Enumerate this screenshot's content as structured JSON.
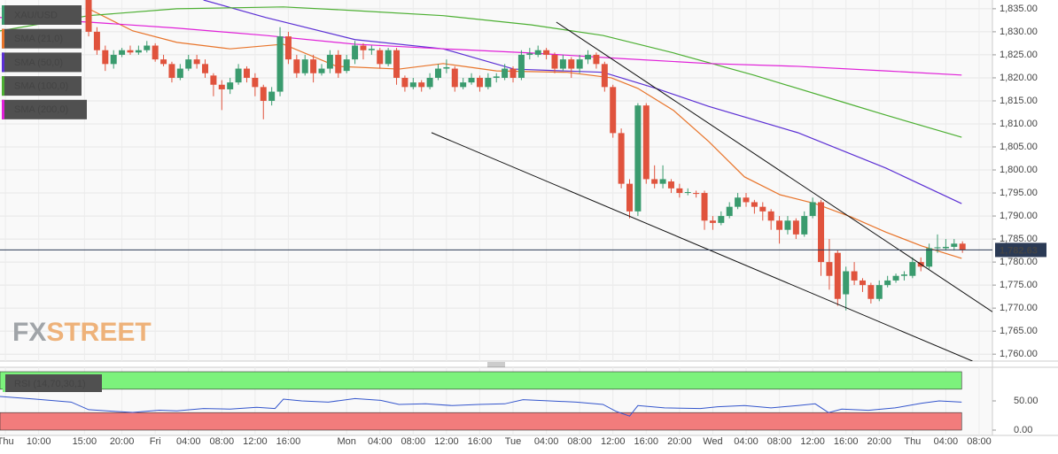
{
  "chart_data": {
    "type": "candlestick",
    "symbol": "XAU/USD",
    "symbol_color": "#3a9b6e",
    "up_color": "#3a9b6e",
    "down_color": "#e0533d",
    "grid": true,
    "xlim": [
      0.35,
      119.6
    ],
    "ylim": [
      1758.5,
      1836.9
    ],
    "yticks": [
      {
        "value": 1835,
        "label": "1,835.00"
      },
      {
        "value": 1830,
        "label": "1,830.00"
      },
      {
        "value": 1825,
        "label": "1,825.00"
      },
      {
        "value": 1820,
        "label": "1,820.00"
      },
      {
        "value": 1815,
        "label": "1,815.00"
      },
      {
        "value": 1810,
        "label": "1,810.00"
      },
      {
        "value": 1805,
        "label": "1,805.00"
      },
      {
        "value": 1800,
        "label": "1,800.00"
      },
      {
        "value": 1795,
        "label": "1,795.00"
      },
      {
        "value": 1790,
        "label": "1,790.00"
      },
      {
        "value": 1785,
        "label": "1,785.00"
      },
      {
        "value": 1780,
        "label": "1,780.00"
      },
      {
        "value": 1775,
        "label": "1,775.00"
      },
      {
        "value": 1770,
        "label": "1,770.00"
      },
      {
        "value": 1765,
        "label": "1,765.00"
      },
      {
        "value": 1760,
        "label": "1,760.00"
      }
    ],
    "xticks": [
      {
        "value": 1,
        "label": "Thu"
      },
      {
        "value": 5,
        "label": "10:00"
      },
      {
        "value": 10.5,
        "label": "15:00"
      },
      {
        "value": 15,
        "label": "20:00"
      },
      {
        "value": 19,
        "label": "Fri"
      },
      {
        "value": 23,
        "label": "04:00"
      },
      {
        "value": 27,
        "label": "08:00"
      },
      {
        "value": 31,
        "label": "12:00"
      },
      {
        "value": 35,
        "label": "16:00"
      },
      {
        "value": 42,
        "label": "Mon"
      },
      {
        "value": 46,
        "label": "04:00"
      },
      {
        "value": 50,
        "label": "08:00"
      },
      {
        "value": 54,
        "label": "12:00"
      },
      {
        "value": 58,
        "label": "16:00"
      },
      {
        "value": 62,
        "label": "Tue"
      },
      {
        "value": 66,
        "label": "04:00"
      },
      {
        "value": 70,
        "label": "08:00"
      },
      {
        "value": 74,
        "label": "12:00"
      },
      {
        "value": 78,
        "label": "16:00"
      },
      {
        "value": 82,
        "label": "20:00"
      },
      {
        "value": 86,
        "label": "Wed"
      },
      {
        "value": 90,
        "label": "04:00"
      },
      {
        "value": 94,
        "label": "08:00"
      },
      {
        "value": 98,
        "label": "12:00"
      },
      {
        "value": 102,
        "label": "16:00"
      },
      {
        "value": 106,
        "label": "20:00"
      },
      {
        "value": 110,
        "label": "Thu"
      },
      {
        "value": 114,
        "label": "04:00"
      },
      {
        "value": 118,
        "label": "08:00"
      }
    ],
    "x": [
      11,
      12,
      13,
      14,
      15,
      16,
      17,
      18,
      19,
      20,
      21,
      22,
      23,
      24,
      25,
      26,
      27,
      28,
      29,
      30,
      31,
      32,
      33,
      34,
      35,
      36,
      37,
      38,
      39,
      40,
      41,
      42,
      43,
      44,
      45,
      46,
      47,
      48,
      49,
      50,
      51,
      52,
      53,
      54,
      55,
      56,
      57,
      58,
      59,
      60,
      61,
      62,
      63,
      64,
      65,
      66,
      67,
      68,
      69,
      70,
      71,
      72,
      73,
      74,
      75,
      76,
      77,
      78,
      79,
      80,
      81,
      82,
      83,
      84,
      85,
      86,
      87,
      88,
      89,
      90,
      91,
      92,
      93,
      94,
      95,
      96,
      97,
      98,
      99,
      100,
      101,
      102,
      103,
      104,
      105,
      106,
      107,
      108,
      109,
      110,
      111,
      112,
      113,
      114,
      115,
      116
    ],
    "open": [
      1837,
      1830,
      1826,
      1823,
      1825,
      1826,
      1825.5,
      1826,
      1827,
      1824,
      1823,
      1820,
      1822,
      1824,
      1823,
      1820.5,
      1818.5,
      1817.5,
      1819,
      1822,
      1820,
      1818,
      1815,
      1817,
      1829,
      1824,
      1821,
      1824,
      1821,
      1822,
      1825,
      1821.5,
      1824,
      1827,
      1826,
      1826,
      1823,
      1826,
      1820,
      1818,
      1819,
      1818,
      1820,
      1822,
      1822,
      1818,
      1819,
      1820,
      1818,
      1820,
      1820,
      1822,
      1820,
      1825,
      1825,
      1826,
      1825,
      1822,
      1824,
      1822,
      1824,
      1825,
      1823,
      1818,
      1808,
      1797,
      1791,
      1814,
      1798,
      1797,
      1797.5,
      1796,
      1795,
      1795,
      1795,
      1789,
      1788.5,
      1790,
      1792,
      1794,
      1793,
      1792,
      1791,
      1789,
      1787,
      1789,
      1786,
      1790,
      1793,
      1780,
      1782,
      1773,
      1778,
      1776,
      1775,
      1772,
      1775,
      1776,
      1777,
      1777,
      1780,
      1779,
      1783,
      1783,
      1783.3,
      1784
    ],
    "high": [
      1838,
      1831,
      1827,
      1826,
      1826.5,
      1827,
      1827,
      1828,
      1827.5,
      1825,
      1823.5,
      1823,
      1825,
      1825,
      1824,
      1821,
      1819.5,
      1820,
      1823,
      1822.5,
      1821,
      1818.5,
      1818,
      1831,
      1830,
      1825,
      1825,
      1825,
      1823,
      1826,
      1826,
      1825,
      1828,
      1827.5,
      1827,
      1826.5,
      1826.5,
      1826.5,
      1820.5,
      1820,
      1819.5,
      1821,
      1823,
      1824,
      1822.5,
      1820,
      1821,
      1820.5,
      1821,
      1821,
      1823,
      1822.5,
      1826,
      1826.5,
      1827,
      1826.5,
      1825.5,
      1825,
      1824.5,
      1825,
      1826,
      1825.5,
      1823.5,
      1818.5,
      1809,
      1798,
      1814.5,
      1814.5,
      1801,
      1801,
      1798,
      1797,
      1796,
      1795.5,
      1795.5,
      1790,
      1791,
      1793,
      1795,
      1795,
      1793.5,
      1793,
      1791.5,
      1790,
      1790,
      1789.5,
      1791,
      1794,
      1793.5,
      1785,
      1782.5,
      1779,
      1780,
      1776.5,
      1775.5,
      1776,
      1777,
      1777.5,
      1778,
      1781,
      1781,
      1784,
      1786,
      1785,
      1785,
      1784.5
    ],
    "low": [
      1829,
      1825,
      1821.5,
      1822,
      1824.5,
      1825,
      1825,
      1825.5,
      1823.5,
      1822.5,
      1819,
      1819.5,
      1821.5,
      1822,
      1820,
      1816,
      1813,
      1816.5,
      1818.5,
      1819,
      1816,
      1811,
      1814,
      1816,
      1823,
      1820,
      1820.5,
      1819,
      1820.5,
      1821,
      1820,
      1821,
      1823,
      1824,
      1825,
      1822,
      1822.5,
      1818.5,
      1817,
      1817.5,
      1817,
      1817.5,
      1819.5,
      1821,
      1817,
      1817.5,
      1818.5,
      1817,
      1817.5,
      1819,
      1819.5,
      1819,
      1819.5,
      1824,
      1824.5,
      1824,
      1821,
      1821.5,
      1820,
      1821,
      1823,
      1822,
      1817,
      1807,
      1796,
      1789.5,
      1790,
      1797,
      1796,
      1796,
      1795,
      1794,
      1794.5,
      1794,
      1787,
      1787,
      1788,
      1789.5,
      1791.5,
      1792,
      1790.5,
      1789,
      1787,
      1784,
      1786,
      1785,
      1785.5,
      1789.5,
      1777,
      1774,
      1770.5,
      1769.5,
      1775,
      1773.5,
      1771,
      1771.5,
      1774.5,
      1775.5,
      1776,
      1776.5,
      1778,
      1778.5,
      1782,
      1782.5,
      1782.5,
      1782
    ],
    "close": [
      1830,
      1826,
      1823,
      1825,
      1826,
      1825.5,
      1826,
      1827,
      1824,
      1823,
      1820,
      1822,
      1824,
      1823,
      1821,
      1818.5,
      1817.5,
      1819,
      1822,
      1820,
      1818,
      1815,
      1817,
      1829,
      1824,
      1821,
      1824,
      1821,
      1822,
      1825,
      1821,
      1824,
      1827,
      1826,
      1826.3,
      1823,
      1826,
      1820,
      1818,
      1819,
      1818,
      1820,
      1822,
      1822.3,
      1818,
      1819,
      1820,
      1818,
      1820,
      1820.3,
      1822,
      1820,
      1825,
      1825.3,
      1826,
      1825,
      1822,
      1824,
      1822,
      1824,
      1825,
      1823,
      1818,
      1808,
      1797,
      1791,
      1814,
      1798,
      1797,
      1798,
      1796,
      1795,
      1795.2,
      1794.8,
      1789,
      1788.5,
      1790,
      1792,
      1794,
      1793,
      1792,
      1791,
      1789,
      1787,
      1789,
      1786,
      1790,
      1793,
      1780,
      1777,
      1772,
      1778,
      1776,
      1775,
      1772,
      1775,
      1776,
      1777,
      1777.3,
      1780,
      1779,
      1783,
      1783.2,
      1783.3,
      1784,
      1782.63
    ],
    "overlays": [
      {
        "name": "SMA (21,0)",
        "color": "#e8742a",
        "x": [
          11,
          16.3,
          21.6,
          28,
          34.4,
          40.8,
          48.3,
          53.6,
          60,
          68.5,
          73.8,
          77,
          81.3,
          85.5,
          89.8,
          94.1,
          98.3,
          102.6,
          106.8,
          111.1,
          115.9
        ],
        "values": [
          1835,
          1830.2,
          1827.7,
          1826.3,
          1827.3,
          1822.5,
          1821.9,
          1823.1,
          1821.5,
          1821.2,
          1820,
          1817.7,
          1812.9,
          1806.2,
          1798.5,
          1794.6,
          1792.7,
          1789.8,
          1786.5,
          1783.5,
          1780.8
        ]
      },
      {
        "name": "SMA (50,0)",
        "color": "#5b2fd4",
        "x": [
          24.8,
          32.3,
          43,
          53.6,
          62.1,
          72.8,
          79.2,
          85.5,
          96.2,
          106.8,
          115.9
        ],
        "values": [
          1836.9,
          1833.1,
          1828.3,
          1826.3,
          1821.9,
          1821.2,
          1817.7,
          1813.8,
          1808.1,
          1800.4,
          1792.7
        ]
      },
      {
        "name": "SMA (100,0)",
        "color": "#4caf32",
        "x": [
          0.35,
          11,
          21.6,
          34.4,
          43,
          53.6,
          64.2,
          72.8,
          81.3,
          90.9,
          101.5,
          106.8,
          115.9
        ],
        "values": [
          1830.2,
          1833.5,
          1835,
          1835.4,
          1834.6,
          1833.5,
          1831.5,
          1829.2,
          1825.4,
          1820.6,
          1814.8,
          1811.9,
          1807.1
        ]
      },
      {
        "name": "SMA (200,0)",
        "color": "#e020d8",
        "x": [
          0.35,
          11,
          21.6,
          32.3,
          43,
          53.6,
          64.2,
          74.9,
          85.5,
          96.2,
          106.8,
          115.9
        ],
        "values": [
          1833.1,
          1832.1,
          1830.8,
          1829.2,
          1827.3,
          1826.3,
          1825.4,
          1824.2,
          1823.1,
          1822.5,
          1821.5,
          1820.6
        ]
      }
    ],
    "trendlines": [
      {
        "color": "#111111",
        "x": [
          67.2,
          119.6
        ],
        "values": [
          1832.1,
          1769.2
        ]
      },
      {
        "color": "#111111",
        "x": [
          52.2,
          117.2
        ],
        "values": [
          1808.1,
          1758.5
        ]
      }
    ],
    "last_price": 1782.63,
    "last_price_label": "1,782.63",
    "watermark": [
      "FX",
      "STREET"
    ],
    "rsi": {
      "name": "RSI (14,70,30,1)",
      "color": "#3355cc",
      "ylim": [
        -9.1,
        107.6
      ],
      "yticks": [
        {
          "value": 50,
          "label": "50.00"
        },
        {
          "value": 0,
          "label": "0.00"
        }
      ],
      "band_top": 100,
      "overbought": 70,
      "oversold": 30,
      "band_bottom": 0,
      "overbought_color": "#7cf27c",
      "oversold_color": "#f27c7c",
      "x": [
        0.35,
        4.6,
        8.9,
        11,
        14.2,
        16.3,
        19.5,
        21.6,
        24.8,
        28,
        31.2,
        33.4,
        34.4,
        36.6,
        39.8,
        43,
        46.1,
        48.3,
        51.5,
        54.7,
        57.9,
        61,
        63.2,
        66.4,
        69.6,
        72.8,
        74.4,
        76,
        77,
        80.2,
        84.5,
        86.6,
        89.8,
        93,
        96.2,
        98.3,
        99.9,
        101.5,
        104.7,
        107.9,
        111.1,
        113.2,
        115.9
      ],
      "values": [
        57.6,
        53,
        48,
        35,
        32,
        30.3,
        34,
        33,
        37,
        36,
        39,
        37,
        53,
        50,
        48,
        54,
        51,
        44,
        45,
        42,
        44,
        45,
        52,
        50,
        48,
        44,
        32,
        24,
        42,
        38,
        37,
        40,
        42,
        38,
        42,
        45,
        30,
        36,
        34,
        38,
        46,
        50,
        48
      ]
    }
  }
}
